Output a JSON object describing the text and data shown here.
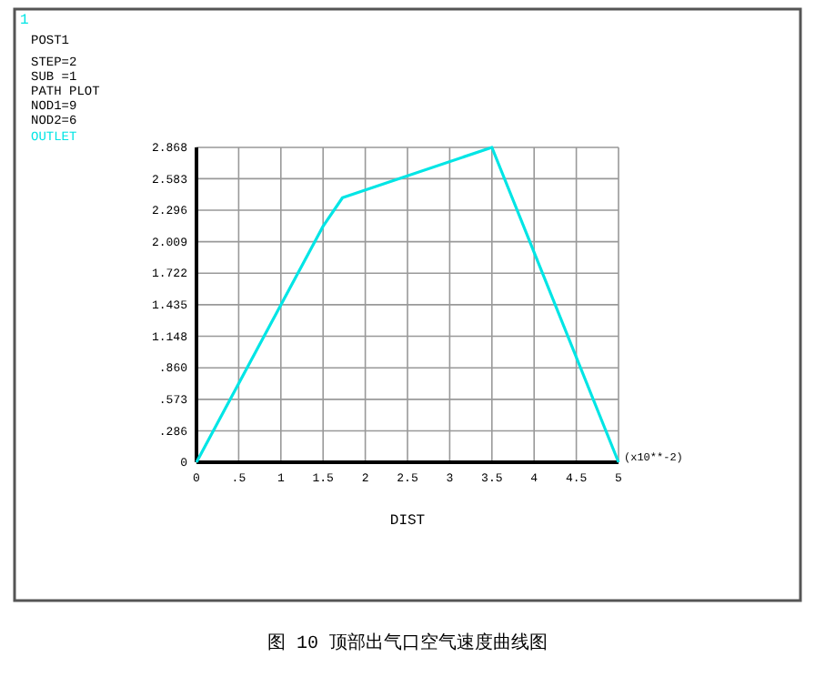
{
  "chart_data": {
    "type": "line",
    "xlabel": "DIST",
    "x": [
      0,
      1.5,
      1.73,
      3.5,
      5
    ],
    "series": [
      {
        "name": "OUTLET",
        "color": "#00e5e5",
        "values": [
          0,
          2.15,
          2.41,
          2.868,
          0
        ]
      }
    ],
    "xlim": [
      0,
      5
    ],
    "xticks": [
      0,
      {
        "value": 0.5,
        "label": ".5"
      },
      1,
      1.5,
      2,
      2.5,
      3,
      3.5,
      4,
      4.5,
      5
    ],
    "ylim": [
      0,
      2.868
    ],
    "yticks": [
      0,
      {
        "value": 0.286,
        "label": ".286"
      },
      {
        "value": 0.573,
        "label": ".573"
      },
      {
        "value": 0.86,
        "label": ".860"
      },
      1.148,
      1.435,
      1.722,
      2.009,
      2.296,
      2.583,
      2.868
    ],
    "grid": true,
    "legend": "left",
    "marker": "none",
    "line_style": "solid",
    "annotations": [
      "1",
      "POST1",
      "STEP=2",
      "SUB =1",
      "PATH PLOT",
      "NOD1=9",
      "NOD2=6",
      "(x10**-2)",
      "图 10    顶部出气口空气速度曲线图"
    ]
  }
}
